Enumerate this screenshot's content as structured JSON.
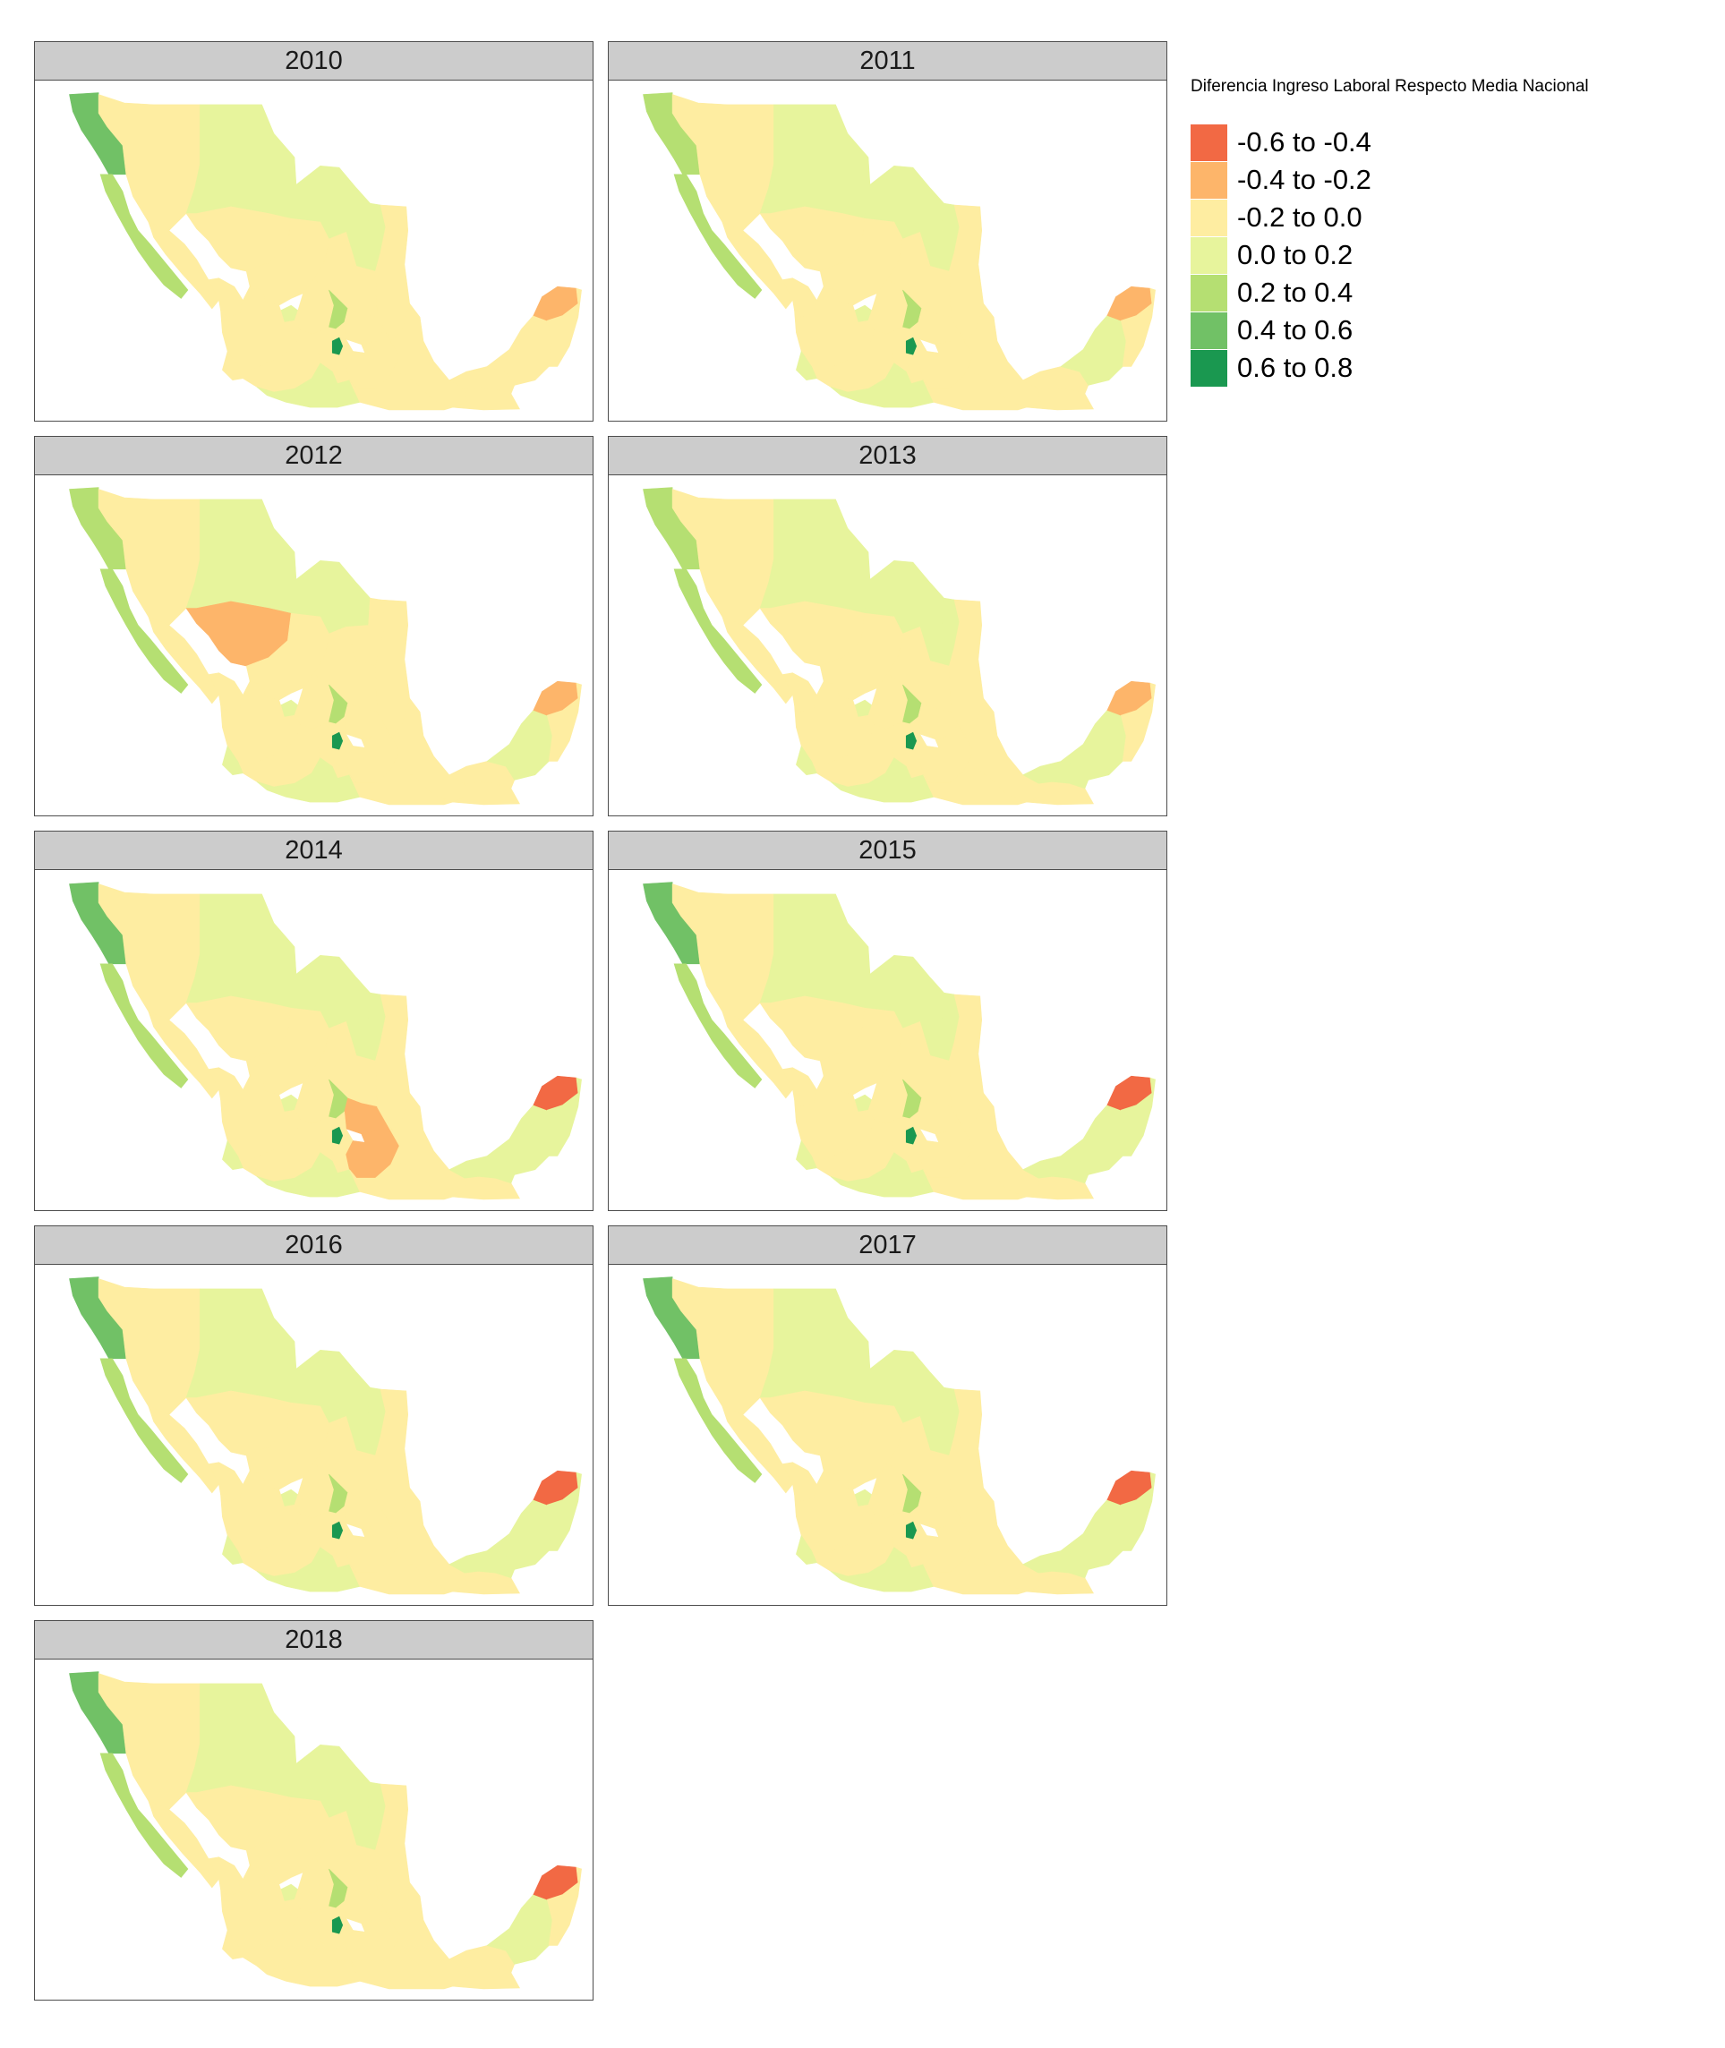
{
  "legend": {
    "title": "Diferencia Ingreso Laboral Respecto Media Nacional",
    "classes": [
      {
        "label": "-0.6 to -0.4",
        "color": "#f26944"
      },
      {
        "label": "-0.4 to -0.2",
        "color": "#fdb56a"
      },
      {
        "label": "-0.2 to 0.0",
        "color": "#feeda1"
      },
      {
        "label": "0.0 to 0.2",
        "color": "#e7f49c"
      },
      {
        "label": "0.2 to 0.4",
        "color": "#b5df72"
      },
      {
        "label": "0.4 to 0.6",
        "color": "#71c166"
      },
      {
        "label": "0.6 to 0.8",
        "color": "#1a9850"
      }
    ]
  },
  "panels": [
    {
      "year": "2010",
      "regions": {
        "bc": 5,
        "bcs": 4,
        "son": 2,
        "chih": 3,
        "coah": 3,
        "nl": 3,
        "tamps": 2,
        "sin": 2,
        "dgo": 2,
        "zac": 2,
        "slp": 2,
        "nay": 2,
        "jal": 2,
        "ags": 3,
        "gto": 2,
        "qro": 4,
        "hgo": 2,
        "mex": 2,
        "cdmx": 6,
        "mor": 2,
        "pue": 2,
        "tlax": 2,
        "ver": 2,
        "mich": 2,
        "col": 2,
        "gro": 3,
        "oax": 2,
        "chis": 2,
        "tab": 2,
        "camp": 2,
        "yuc": 1,
        "qroo": 2
      }
    },
    {
      "year": "2011",
      "regions": {
        "bc": 4,
        "bcs": 4,
        "son": 2,
        "chih": 3,
        "coah": 3,
        "nl": 3,
        "tamps": 2,
        "sin": 2,
        "dgo": 2,
        "zac": 2,
        "slp": 2,
        "nay": 2,
        "jal": 2,
        "ags": 3,
        "gto": 2,
        "qro": 4,
        "hgo": 2,
        "mex": 2,
        "cdmx": 6,
        "mor": 2,
        "pue": 2,
        "tlax": 2,
        "ver": 2,
        "mich": 2,
        "col": 3,
        "gro": 3,
        "oax": 2,
        "chis": 2,
        "tab": 2,
        "camp": 3,
        "yuc": 1,
        "qroo": 2
      }
    },
    {
      "year": "2012",
      "regions": {
        "bc": 4,
        "bcs": 4,
        "son": 2,
        "chih": 3,
        "coah": 3,
        "nl": 2,
        "tamps": 2,
        "sin": 2,
        "dgo": 1,
        "zac": 2,
        "slp": 2,
        "nay": 2,
        "jal": 2,
        "ags": 3,
        "gto": 2,
        "qro": 4,
        "hgo": 2,
        "mex": 2,
        "cdmx": 6,
        "mor": 2,
        "pue": 2,
        "tlax": 2,
        "ver": 2,
        "mich": 2,
        "col": 3,
        "gro": 3,
        "oax": 2,
        "chis": 2,
        "tab": 2,
        "camp": 3,
        "yuc": 1,
        "qroo": 2
      }
    },
    {
      "year": "2013",
      "regions": {
        "bc": 4,
        "bcs": 4,
        "son": 2,
        "chih": 3,
        "coah": 3,
        "nl": 3,
        "tamps": 2,
        "sin": 2,
        "dgo": 2,
        "zac": 2,
        "slp": 2,
        "nay": 2,
        "jal": 2,
        "ags": 3,
        "gto": 2,
        "qro": 4,
        "hgo": 2,
        "mex": 2,
        "cdmx": 6,
        "mor": 2,
        "pue": 2,
        "tlax": 2,
        "ver": 2,
        "mich": 2,
        "col": 3,
        "gro": 3,
        "oax": 2,
        "chis": 2,
        "tab": 3,
        "camp": 3,
        "yuc": 1,
        "qroo": 2
      }
    },
    {
      "year": "2014",
      "regions": {
        "bc": 5,
        "bcs": 4,
        "son": 2,
        "chih": 3,
        "coah": 3,
        "nl": 3,
        "tamps": 2,
        "sin": 2,
        "dgo": 2,
        "zac": 2,
        "slp": 2,
        "nay": 2,
        "jal": 2,
        "ags": 3,
        "gto": 2,
        "qro": 4,
        "hgo": 1,
        "mex": 2,
        "cdmx": 6,
        "mor": 2,
        "pue": 1,
        "tlax": 1,
        "ver": 2,
        "mich": 2,
        "col": 3,
        "gro": 3,
        "oax": 2,
        "chis": 2,
        "tab": 3,
        "camp": 3,
        "yuc": 0,
        "qroo": 3
      }
    },
    {
      "year": "2015",
      "regions": {
        "bc": 5,
        "bcs": 4,
        "son": 2,
        "chih": 3,
        "coah": 3,
        "nl": 3,
        "tamps": 2,
        "sin": 2,
        "dgo": 2,
        "zac": 2,
        "slp": 2,
        "nay": 2,
        "jal": 2,
        "ags": 3,
        "gto": 2,
        "qro": 4,
        "hgo": 2,
        "mex": 2,
        "cdmx": 6,
        "mor": 2,
        "pue": 2,
        "tlax": 2,
        "ver": 2,
        "mich": 2,
        "col": 3,
        "gro": 3,
        "oax": 2,
        "chis": 2,
        "tab": 3,
        "camp": 3,
        "yuc": 0,
        "qroo": 3
      }
    },
    {
      "year": "2016",
      "regions": {
        "bc": 5,
        "bcs": 4,
        "son": 2,
        "chih": 3,
        "coah": 3,
        "nl": 3,
        "tamps": 2,
        "sin": 2,
        "dgo": 2,
        "zac": 2,
        "slp": 2,
        "nay": 2,
        "jal": 2,
        "ags": 3,
        "gto": 2,
        "qro": 4,
        "hgo": 2,
        "mex": 2,
        "cdmx": 6,
        "mor": 2,
        "pue": 2,
        "tlax": 2,
        "ver": 2,
        "mich": 2,
        "col": 3,
        "gro": 3,
        "oax": 2,
        "chis": 2,
        "tab": 3,
        "camp": 3,
        "yuc": 0,
        "qroo": 3
      }
    },
    {
      "year": "2017",
      "regions": {
        "bc": 5,
        "bcs": 4,
        "son": 2,
        "chih": 3,
        "coah": 3,
        "nl": 3,
        "tamps": 2,
        "sin": 2,
        "dgo": 2,
        "zac": 2,
        "slp": 2,
        "nay": 2,
        "jal": 2,
        "ags": 3,
        "gto": 2,
        "qro": 4,
        "hgo": 2,
        "mex": 2,
        "cdmx": 6,
        "mor": 2,
        "pue": 2,
        "tlax": 2,
        "ver": 2,
        "mich": 2,
        "col": 3,
        "gro": 3,
        "oax": 2,
        "chis": 2,
        "tab": 3,
        "camp": 3,
        "yuc": 0,
        "qroo": 3
      }
    },
    {
      "year": "2018",
      "regions": {
        "bc": 5,
        "bcs": 4,
        "son": 2,
        "chih": 3,
        "coah": 3,
        "nl": 3,
        "tamps": 2,
        "sin": 2,
        "dgo": 2,
        "zac": 2,
        "slp": 2,
        "nay": 2,
        "jal": 2,
        "ags": 3,
        "gto": 2,
        "qro": 4,
        "hgo": 2,
        "mex": 2,
        "cdmx": 6,
        "mor": 2,
        "pue": 2,
        "tlax": 2,
        "ver": 2,
        "mich": 2,
        "col": 2,
        "gro": 2,
        "oax": 2,
        "chis": 2,
        "tab": 2,
        "camp": 3,
        "yuc": 0,
        "qroo": 2
      }
    }
  ]
}
